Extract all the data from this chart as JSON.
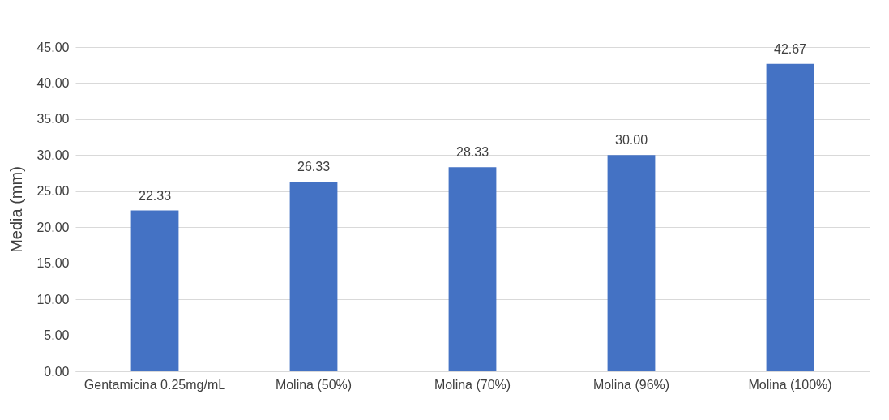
{
  "chart_data": {
    "type": "bar",
    "ylabel": "Media (mm)",
    "categories": [
      "Gentamicina 0.25mg/mL",
      "Molina (50%)",
      "Molina (70%)",
      "Molina (96%)",
      "Molina (100%)"
    ],
    "values": [
      22.33,
      26.33,
      28.33,
      30.0,
      42.67
    ],
    "value_labels": [
      "22.33",
      "26.33",
      "28.33",
      "30.00",
      "42.67"
    ],
    "color": "#4472c4",
    "ylim": [
      0,
      45
    ],
    "yticks": [
      {
        "value": 0,
        "label": "0.00"
      },
      {
        "value": 5,
        "label": "5.00"
      },
      {
        "value": 10,
        "label": "10.00"
      },
      {
        "value": 15,
        "label": "15.00"
      },
      {
        "value": 20,
        "label": "20.00"
      },
      {
        "value": 25,
        "label": "25.00"
      },
      {
        "value": 30,
        "label": "30.00"
      },
      {
        "value": 35,
        "label": "35.00"
      },
      {
        "value": 40,
        "label": "40.00"
      },
      {
        "value": 45,
        "label": "45.00"
      }
    ],
    "grid": "y"
  }
}
